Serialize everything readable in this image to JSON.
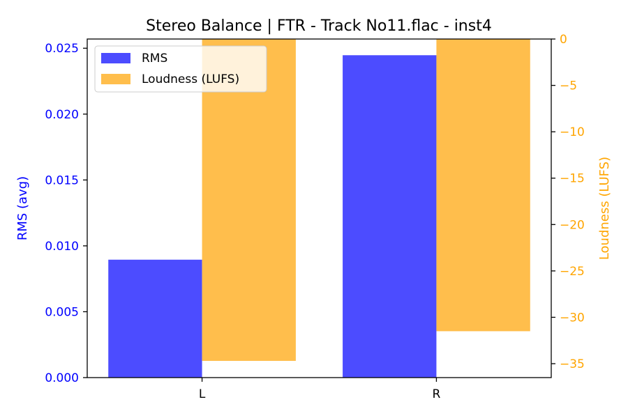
{
  "chart_data": {
    "type": "bar",
    "title": "Stereo Balance | FTR - Track No11.flac - inst4",
    "categories": [
      "L",
      "R"
    ],
    "series": [
      {
        "name": "RMS",
        "axis": "left",
        "color": "#4c4cff",
        "values": [
          0.00895,
          0.02447
        ]
      },
      {
        "name": "Loudness (LUFS)",
        "axis": "right",
        "color": "#ffbe4c",
        "values": [
          -34.7,
          -31.5
        ]
      }
    ],
    "left_axis": {
      "label": "RMS (avg)",
      "color": "#0000ff",
      "ylim": [
        0,
        0.0257
      ],
      "ticks": [
        0,
        0.005,
        0.01,
        0.015,
        0.02,
        0.025
      ],
      "tick_labels": [
        "0.000",
        "0.005",
        "0.010",
        "0.015",
        "0.020",
        "0.025"
      ]
    },
    "right_axis": {
      "label": "Loudness (LUFS)",
      "color": "#ffa500",
      "ylim": [
        -36.5,
        0
      ],
      "ticks": [
        0,
        -5,
        -10,
        -15,
        -20,
        -25,
        -30,
        -35
      ],
      "tick_labels": [
        "0",
        "−5",
        "−10",
        "−15",
        "−20",
        "−25",
        "−30",
        "−35"
      ]
    },
    "legend": {
      "position": "top-left",
      "entries": [
        "RMS",
        "Loudness (LUFS)"
      ]
    },
    "grid": false
  }
}
